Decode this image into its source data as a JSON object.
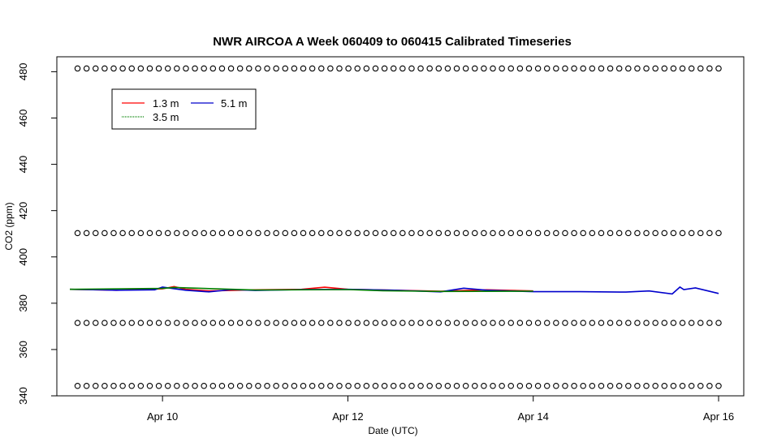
{
  "chart_data": {
    "type": "line",
    "title": "NWR AIRCOA A  Week 060409 to 060415  Calibrated Timeseries",
    "xlabel": "Date (UTC)",
    "ylabel": "CO2 (ppm)",
    "x_ticks": [
      "Apr 10",
      "Apr 12",
      "Apr 14",
      "Apr 16"
    ],
    "y_ticks": [
      "340",
      "360",
      "380",
      "400",
      "420",
      "440",
      "460",
      "480"
    ],
    "xlim": [
      "2006-04-09T00:00",
      "2006-04-16T00:00"
    ],
    "ylim": [
      340,
      484
    ],
    "legend": {
      "placement": "top-left"
    },
    "series": [
      {
        "name": "1.3 m",
        "color": "#ff0000",
        "x": [
          "2006-04-09T00:00",
          "2006-04-09T12:00",
          "2006-04-10T00:00",
          "2006-04-10T03:00",
          "2006-04-10T06:00",
          "2006-04-10T12:00",
          "2006-04-11T00:00",
          "2006-04-11T12:00",
          "2006-04-11T18:00",
          "2006-04-12T00:00",
          "2006-04-12T12:00",
          "2006-04-13T00:00",
          "2006-04-13T12:00",
          "2006-04-14T00:00"
        ],
        "values": [
          386.0,
          385.6,
          386.2,
          387.2,
          386.0,
          385.3,
          385.8,
          386.0,
          386.9,
          386.0,
          385.6,
          385.2,
          385.8,
          385.3
        ]
      },
      {
        "name": "5.1 m",
        "color": "#0000cc",
        "x": [
          "2006-04-09T00:00",
          "2006-04-09T12:00",
          "2006-04-09T22:00",
          "2006-04-10T00:00",
          "2006-04-10T03:00",
          "2006-04-10T06:00",
          "2006-04-10T12:00",
          "2006-04-10T18:00",
          "2006-04-11T00:00",
          "2006-04-11T12:00",
          "2006-04-12T00:00",
          "2006-04-12T12:00",
          "2006-04-13T00:00",
          "2006-04-13T06:00",
          "2006-04-13T12:00",
          "2006-04-14T00:00",
          "2006-04-14T12:00",
          "2006-04-15T00:00",
          "2006-04-15T06:00",
          "2006-04-15T12:00",
          "2006-04-15T14:00",
          "2006-04-15T15:00",
          "2006-04-15T18:00",
          "2006-04-16T00:00"
        ],
        "values": [
          386.0,
          385.6,
          385.8,
          387.0,
          386.3,
          385.6,
          384.9,
          385.9,
          385.5,
          385.9,
          386.0,
          385.6,
          384.9,
          386.5,
          385.6,
          385.0,
          385.0,
          384.8,
          385.3,
          384.0,
          387.0,
          385.9,
          386.6,
          384.2
        ]
      },
      {
        "name": "3.5 m",
        "color": "#008000",
        "x": [
          "2006-04-09T00:00",
          "2006-04-10T00:00",
          "2006-04-10T03:00",
          "2006-04-11T00:00",
          "2006-04-12T00:00",
          "2006-04-12T09:00",
          "2006-04-13T00:00",
          "2006-04-14T00:00"
        ],
        "values": [
          386.0,
          386.4,
          386.8,
          385.7,
          385.9,
          385.4,
          385.1,
          385.2
        ]
      }
    ],
    "calibration_rows": {
      "values": [
        481.4,
        410.3,
        371.5,
        344.3
      ],
      "x_start": "2006-04-09T02:00",
      "x_end": "2006-04-16T00:00",
      "count": 72,
      "color": "#000000"
    },
    "legend_order": [
      "1.3 m",
      "5.1 m",
      "3.5 m"
    ]
  }
}
